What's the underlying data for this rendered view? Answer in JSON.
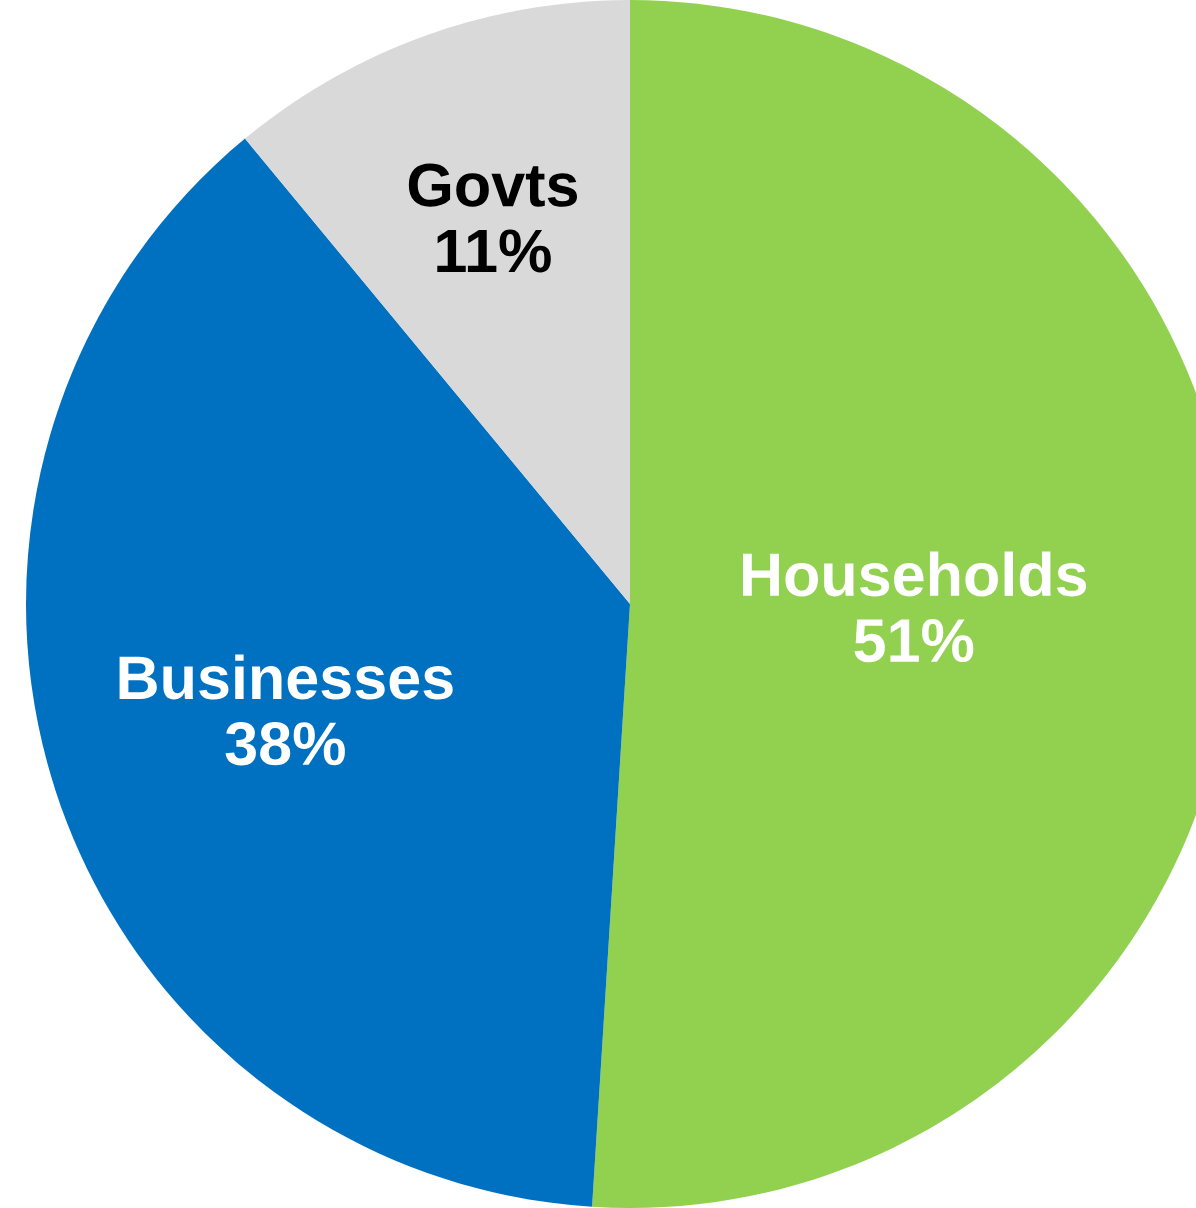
{
  "chart_data": {
    "type": "pie",
    "categories": [
      "Households",
      "Businesses",
      "Govts"
    ],
    "values": [
      51,
      38,
      11
    ],
    "value_labels": [
      "51%",
      "38%",
      "11%"
    ],
    "colors": [
      "#92d050",
      "#0070c0",
      "#d9d9d9"
    ]
  }
}
